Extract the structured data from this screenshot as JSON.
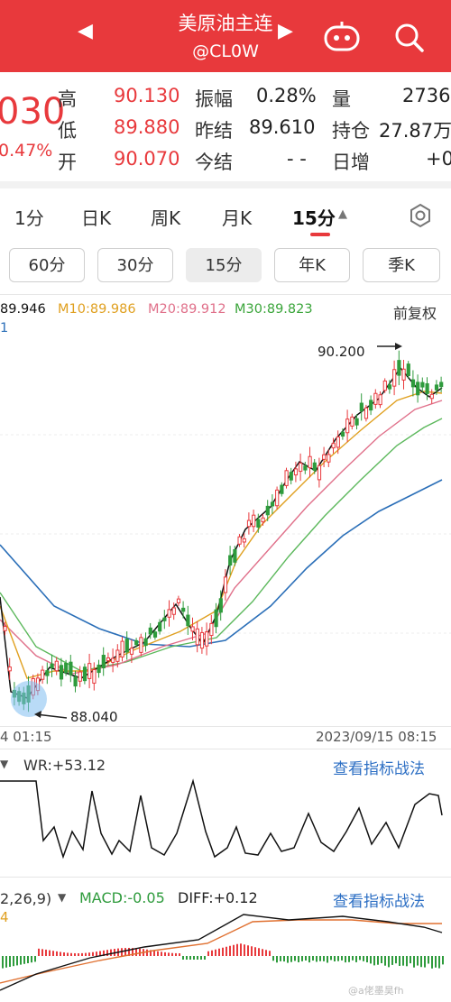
{
  "header": {
    "title": "美原油主连",
    "subtitle": "@CL0W",
    "prev_arrow": "◀",
    "next_arrow": "▶"
  },
  "quote": {
    "price_partial": "030",
    "change_partial": "0.47%",
    "high_label": "高",
    "high_value": "90.130",
    "low_label": "低",
    "low_value": "89.880",
    "open_label": "开",
    "open_value": "90.070",
    "amplitude_label": "振幅",
    "amplitude_value": "0.28%",
    "prev_settle_label": "昨结",
    "prev_settle_value": "89.610",
    "today_settle_label": "今结",
    "today_settle_value": "- -",
    "volume_label": "量",
    "volume_value": "2736",
    "open_interest_label": "持仓",
    "open_interest_value": "27.87万",
    "daily_inc_label": "日增",
    "daily_inc_value": "+0"
  },
  "period_tabs": [
    "1分",
    "日K",
    "周K",
    "月K",
    "15分"
  ],
  "active_period_tab": "15分",
  "sub_periods": [
    "60分",
    "30分",
    "15分",
    "年K",
    "季K"
  ],
  "active_sub_period": "15分",
  "ma_legend": {
    "ma5": "89.946",
    "ma10": "M10:89.986",
    "ma20": "M20:89.912",
    "ma30": "M30:89.823",
    "ma_line2": "1",
    "adjust": "前复权"
  },
  "colors": {
    "up": "#e8393c",
    "down": "#2e9b3c",
    "ma5": "#111111",
    "ma10": "#e0a020",
    "ma20": "#e0708a",
    "ma30": "#5cb85c",
    "ma60": "#2b6fb8"
  },
  "chart_data": {
    "type": "candlestick",
    "high_annotation": "90.200",
    "low_annotation": "88.040",
    "x_start_label": "4 01:15",
    "x_end_label": "2023/09/15 08:15"
  },
  "indicator_wr": {
    "label": "WR:+53.12",
    "link": "查看指标战法"
  },
  "indicator_macd": {
    "params": "2,26,9)",
    "macd_label": "MACD:-0.05",
    "diff_label": "DIFF:+0.12",
    "line2": "4",
    "link": "查看指标战法"
  },
  "watermark": "@a佬墨昊fh"
}
